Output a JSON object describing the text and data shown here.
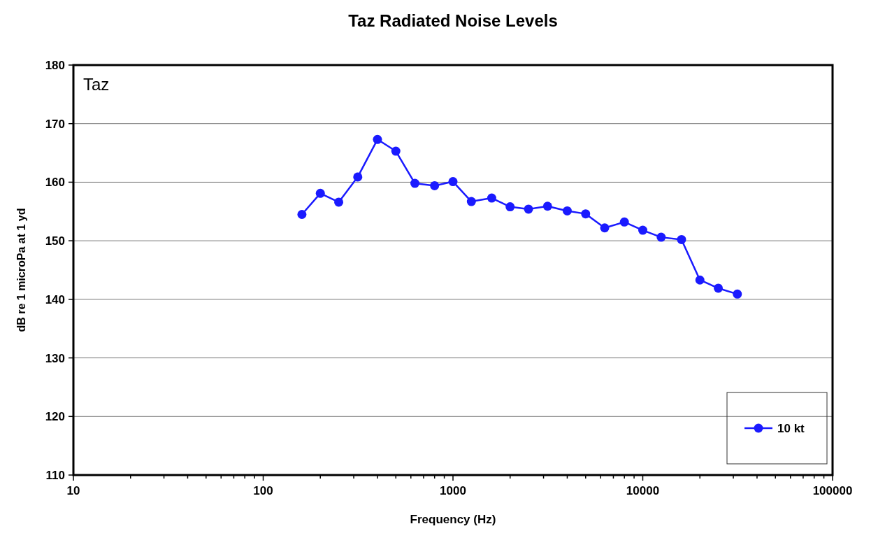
{
  "chart_data": {
    "type": "line",
    "title": "Taz Radiated Noise Levels",
    "xlabel": "Frequency (Hz)",
    "ylabel": "dB re 1 microPa at 1 yd",
    "annotations": [
      "Taz"
    ],
    "log": "x",
    "grid": "y",
    "legend": "bottom right",
    "marker": "circle",
    "line_style": "solid",
    "xlim": [
      10,
      100000
    ],
    "xticks": [
      10,
      {
        "value": 20,
        "label": null
      },
      {
        "value": 30,
        "label": null
      },
      {
        "value": 40,
        "label": null
      },
      {
        "value": 50,
        "label": null
      },
      {
        "value": 60,
        "label": null
      },
      {
        "value": 70,
        "label": null
      },
      {
        "value": 80,
        "label": null
      },
      {
        "value": 90,
        "label": null
      },
      100,
      {
        "value": 200,
        "label": null
      },
      {
        "value": 300,
        "label": null
      },
      {
        "value": 400,
        "label": null
      },
      {
        "value": 500,
        "label": null
      },
      {
        "value": 600,
        "label": null
      },
      {
        "value": 700,
        "label": null
      },
      {
        "value": 800,
        "label": null
      },
      {
        "value": 900,
        "label": null
      },
      1000,
      {
        "value": 2000,
        "label": null
      },
      {
        "value": 3000,
        "label": null
      },
      {
        "value": 4000,
        "label": null
      },
      {
        "value": 5000,
        "label": null
      },
      {
        "value": 6000,
        "label": null
      },
      {
        "value": 7000,
        "label": null
      },
      {
        "value": 8000,
        "label": null
      },
      {
        "value": 9000,
        "label": null
      },
      10000,
      {
        "value": 20000,
        "label": null
      },
      {
        "value": 30000,
        "label": null
      },
      {
        "value": 40000,
        "label": null
      },
      {
        "value": 50000,
        "label": null
      },
      {
        "value": 60000,
        "label": null
      },
      {
        "value": 70000,
        "label": null
      },
      {
        "value": 80000,
        "label": null
      },
      {
        "value": 90000,
        "label": null
      },
      100000
    ],
    "ylim": [
      110,
      180
    ],
    "yticks": [
      110,
      120,
      130,
      140,
      150,
      160,
      170,
      180
    ],
    "x": [
      160,
      200,
      250,
      315,
      400,
      500,
      630,
      800,
      1000,
      1250,
      1600,
      2000,
      2500,
      3150,
      4000,
      5000,
      6300,
      8000,
      10000,
      12500,
      16000,
      20000,
      25000,
      31500
    ],
    "series": [
      {
        "name": "10 kt",
        "color": "#1a1aff",
        "values": [
          154.5,
          158.1,
          156.6,
          160.9,
          167.3,
          165.3,
          159.8,
          159.4,
          160.1,
          156.7,
          157.3,
          155.8,
          155.4,
          155.9,
          155.1,
          154.6,
          152.2,
          153.2,
          151.8,
          150.6,
          150.2,
          143.3,
          141.9,
          140.9
        ]
      }
    ]
  }
}
